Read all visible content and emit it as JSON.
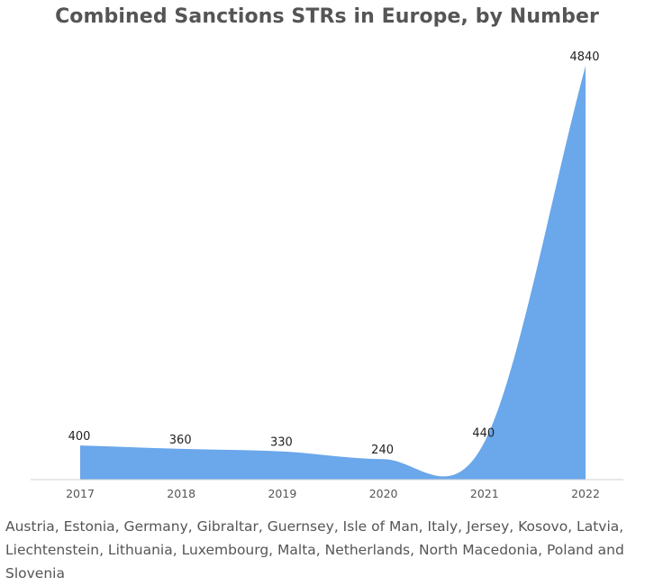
{
  "chart_data": {
    "type": "area",
    "title": "Combined Sanctions STRs in Europe, by Number",
    "categories": [
      "2017",
      "2018",
      "2019",
      "2020",
      "2021",
      "2022"
    ],
    "values": [
      400,
      360,
      330,
      240,
      440,
      4840
    ],
    "data_labels": [
      "400",
      "360",
      "330",
      "240",
      "440",
      "4840"
    ],
    "xlabel": "",
    "ylabel": "",
    "ylim": [
      0,
      4840
    ],
    "grid": false,
    "legend": "none",
    "fill_color": "#6aa7eb",
    "note": "Austria, Estonia, Germany, Gibraltar, Guernsey, Isle of Man, Italy, Jersey, Kosovo, Latvia, Liechtenstein, Lithuania, Luxembourg, Malta, Netherlands, North Macedonia, Poland and Slovenia"
  }
}
